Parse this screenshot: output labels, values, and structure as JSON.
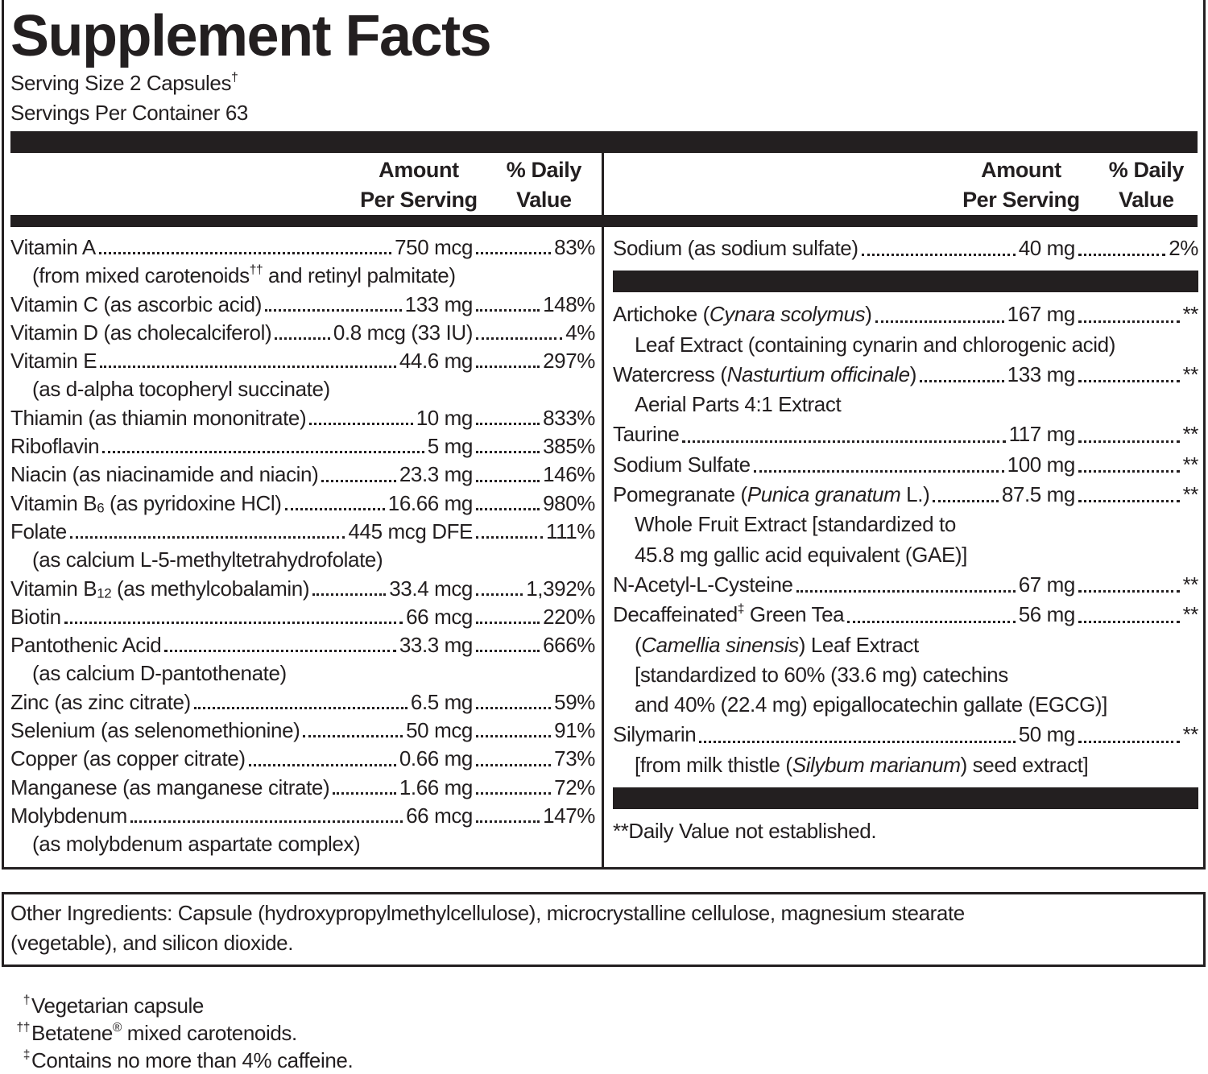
{
  "title": "Supplement Facts",
  "serving_size": [
    "Serving Size 2 Capsules",
    {
      "text": "†",
      "style": "sup"
    }
  ],
  "servings_per_container": "Servings Per Container 63",
  "left": {
    "header": {
      "amount": [
        "Amount",
        "Per Serving"
      ],
      "dv": [
        "% Daily",
        "Value"
      ]
    },
    "rows": [
      {
        "name": "Vitamin A",
        "amount": "750 mcg",
        "dv": "83%",
        "sub": [
          [
            "(from mixed carotenoids",
            {
              "text": "††",
              "style": "sup"
            },
            " and retinyl palmitate)"
          ]
        ]
      },
      {
        "name": "Vitamin C (as ascorbic acid)",
        "amount": "133 mg",
        "dv": "148%"
      },
      {
        "name": "Vitamin D (as cholecalciferol)",
        "amount": "0.8 mcg (33 IU)",
        "dv": "4%"
      },
      {
        "name": "Vitamin E",
        "amount": "44.6 mg",
        "dv": "297%",
        "sub": [
          "(as d-alpha tocopheryl succinate)"
        ]
      },
      {
        "name": "Thiamin (as thiamin mononitrate)",
        "amount": "10 mg",
        "dv": "833%"
      },
      {
        "name": "Riboflavin",
        "amount": "5 mg",
        "dv": "385%"
      },
      {
        "name": "Niacin (as niacinamide and niacin)",
        "amount": "23.3 mg",
        "dv": "146%"
      },
      {
        "name": [
          "Vitamin B",
          {
            "text": "6",
            "style": "sub"
          },
          " (as pyridoxine HCl)"
        ],
        "amount": "16.66 mg",
        "dv": "980%"
      },
      {
        "name": "Folate",
        "amount": "445 mcg DFE",
        "dv": "111%",
        "sub": [
          "(as calcium L-5-methyltetrahydrofolate)"
        ]
      },
      {
        "name": [
          "Vitamin B",
          {
            "text": "12",
            "style": "sub"
          },
          " (as methylcobalamin)"
        ],
        "amount": "33.4 mcg",
        "dv": "1,392%"
      },
      {
        "name": "Biotin",
        "amount": "66 mcg",
        "dv": "220%"
      },
      {
        "name": "Pantothenic Acid",
        "amount": "33.3 mg",
        "dv": "666%",
        "sub": [
          "(as calcium D-pantothenate)"
        ]
      },
      {
        "name": "Zinc (as zinc citrate)",
        "amount": "6.5 mg",
        "dv": "59%"
      },
      {
        "name": "Selenium (as selenomethionine)",
        "amount": "50 mcg",
        "dv": "91%"
      },
      {
        "name": "Copper (as copper citrate)",
        "amount": "0.66 mg",
        "dv": "73%"
      },
      {
        "name": "Manganese (as manganese citrate)",
        "amount": "1.66 mg",
        "dv": "72%"
      },
      {
        "name": "Molybdenum",
        "amount": "66 mcg",
        "dv": "147%",
        "sub": [
          "(as molybdenum aspartate complex)"
        ]
      }
    ]
  },
  "right": {
    "header": {
      "amount": [
        "Amount",
        "Per Serving"
      ],
      "dv": [
        "% Daily",
        "Value"
      ]
    },
    "groups": [
      [
        {
          "name": "Sodium (as sodium sulfate)",
          "amount": "40 mg",
          "dv": "2%"
        }
      ],
      [
        {
          "name": [
            "Artichoke (",
            {
              "text": "Cynara scolymus",
              "style": "italic"
            },
            ")"
          ],
          "amount": "167 mg",
          "dv": "**",
          "sub": [
            "Leaf Extract (containing cynarin and chlorogenic acid)"
          ]
        },
        {
          "name": [
            "Watercress (",
            {
              "text": "Nasturtium officinale",
              "style": "italic"
            },
            ")"
          ],
          "amount": "133 mg",
          "dv": "**",
          "sub": [
            "Aerial Parts 4:1 Extract"
          ]
        },
        {
          "name": "Taurine",
          "amount": "117 mg",
          "dv": "**"
        },
        {
          "name": "Sodium Sulfate",
          "amount": "100 mg",
          "dv": "**"
        },
        {
          "name": [
            "Pomegranate (",
            {
              "text": "Punica granatum",
              "style": "italic"
            },
            " L.)"
          ],
          "amount": "87.5 mg",
          "dv": "**",
          "sub": [
            "Whole Fruit Extract [standardized to",
            "45.8 mg gallic acid equivalent (GAE)]"
          ]
        },
        {
          "name": "N-Acetyl-L-Cysteine",
          "amount": "67 mg",
          "dv": "**"
        },
        {
          "name": [
            "Decaffeinated",
            {
              "text": "‡",
              "style": "sup"
            },
            " Green Tea"
          ],
          "amount": "56 mg",
          "dv": "**",
          "sub": [
            [
              "(",
              {
                "text": "Camellia sinensis",
                "style": "italic"
              },
              ") Leaf Extract"
            ],
            "[standardized to 60% (33.6 mg) catechins",
            "and 40% (22.4 mg) epigallocatechin gallate (EGCG)]"
          ]
        },
        {
          "name": "Silymarin",
          "amount": "50 mg",
          "dv": "**",
          "sub": [
            [
              "[from milk thistle (",
              {
                "text": "Silybum marianum",
                "style": "italic"
              },
              ") seed extract]"
            ]
          ]
        }
      ]
    ],
    "note": "**Daily Value not established."
  },
  "other_ingredients": [
    "Other Ingredients: Capsule (hydroxypropylmethylcellulose), microcrystalline cellulose, magnesium stearate",
    "(vegetable), and silicon dioxide."
  ],
  "footnotes": [
    {
      "symbol": "†",
      "text": "Vegetarian capsule"
    },
    {
      "symbol": "††",
      "text": [
        "Betatene",
        {
          "text": "®",
          "style": "sup"
        },
        " mixed carotenoids."
      ]
    },
    {
      "symbol": "‡",
      "text": "Contains no more than 4% caffeine."
    }
  ]
}
